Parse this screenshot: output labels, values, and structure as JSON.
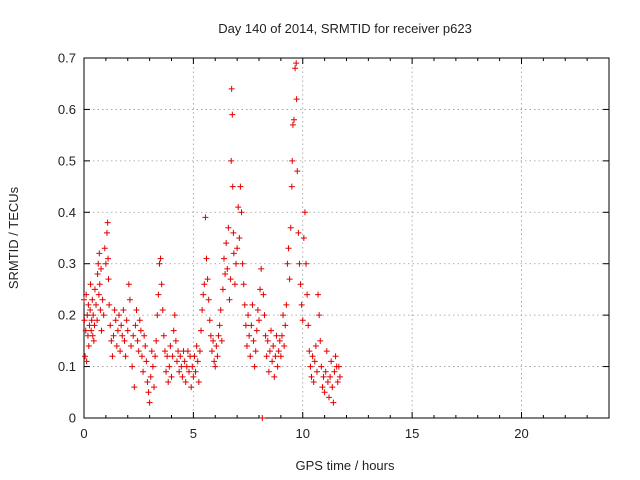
{
  "chart_data": {
    "type": "scatter",
    "title": "Day 140 of 2014, SRMTID for receiver p623",
    "xlabel": "GPS time / hours",
    "ylabel": "SRMTID / TECUs",
    "xlim": [
      0,
      24
    ],
    "ylim": [
      0,
      0.7
    ],
    "xticks": [
      0,
      5,
      10,
      15,
      20
    ],
    "yticks": [
      0,
      0.1,
      0.2,
      0.3,
      0.4,
      0.5,
      0.6,
      0.7
    ],
    "xtick_labels": [
      "0",
      "5",
      "10",
      "15",
      "20"
    ],
    "ytick_labels": [
      "0",
      "0.1",
      "0.2",
      "0.3",
      "0.4",
      "0.5",
      "0.6",
      "0.7"
    ],
    "grid": true,
    "marker": "+",
    "color": "#e00000",
    "series": [
      {
        "name": "SRMTID",
        "points": [
          [
            0.0,
            0.23
          ],
          [
            0.02,
            0.19
          ],
          [
            0.05,
            0.12
          ],
          [
            0.08,
            0.17
          ],
          [
            0.1,
            0.24
          ],
          [
            0.12,
            0.11
          ],
          [
            0.15,
            0.2
          ],
          [
            0.18,
            0.16
          ],
          [
            0.2,
            0.22
          ],
          [
            0.22,
            0.14
          ],
          [
            0.25,
            0.18
          ],
          [
            0.28,
            0.21
          ],
          [
            0.3,
            0.26
          ],
          [
            0.33,
            0.17
          ],
          [
            0.35,
            0.19
          ],
          [
            0.38,
            0.23
          ],
          [
            0.4,
            0.16
          ],
          [
            0.42,
            0.2
          ],
          [
            0.45,
            0.15
          ],
          [
            0.48,
            0.18
          ],
          [
            0.5,
            0.25
          ],
          [
            0.55,
            0.22
          ],
          [
            0.6,
            0.19
          ],
          [
            0.62,
            0.28
          ],
          [
            0.65,
            0.3
          ],
          [
            0.68,
            0.24
          ],
          [
            0.7,
            0.32
          ],
          [
            0.72,
            0.26
          ],
          [
            0.75,
            0.21
          ],
          [
            0.78,
            0.29
          ],
          [
            0.8,
            0.17
          ],
          [
            0.85,
            0.23
          ],
          [
            0.9,
            0.2
          ],
          [
            0.95,
            0.33
          ],
          [
            1.0,
            0.3
          ],
          [
            1.05,
            0.36
          ],
          [
            1.08,
            0.38
          ],
          [
            1.1,
            0.31
          ],
          [
            1.12,
            0.27
          ],
          [
            1.15,
            0.22
          ],
          [
            1.2,
            0.18
          ],
          [
            1.25,
            0.15
          ],
          [
            1.3,
            0.12
          ],
          [
            1.35,
            0.16
          ],
          [
            1.4,
            0.21
          ],
          [
            1.45,
            0.19
          ],
          [
            1.5,
            0.14
          ],
          [
            1.55,
            0.17
          ],
          [
            1.6,
            0.2
          ],
          [
            1.65,
            0.13
          ],
          [
            1.7,
            0.18
          ],
          [
            1.75,
            0.16
          ],
          [
            1.8,
            0.21
          ],
          [
            1.85,
            0.15
          ],
          [
            1.9,
            0.12
          ],
          [
            1.95,
            0.19
          ],
          [
            2.0,
            0.17
          ],
          [
            2.05,
            0.26
          ],
          [
            2.1,
            0.23
          ],
          [
            2.15,
            0.14
          ],
          [
            2.2,
            0.1
          ],
          [
            2.25,
            0.16
          ],
          [
            2.3,
            0.06
          ],
          [
            2.35,
            0.18
          ],
          [
            2.4,
            0.21
          ],
          [
            2.45,
            0.15
          ],
          [
            2.5,
            0.13
          ],
          [
            2.55,
            0.19
          ],
          [
            2.6,
            0.17
          ],
          [
            2.65,
            0.12
          ],
          [
            2.7,
            0.09
          ],
          [
            2.75,
            0.16
          ],
          [
            2.8,
            0.14
          ],
          [
            2.85,
            0.11
          ],
          [
            2.9,
            0.07
          ],
          [
            2.95,
            0.05
          ],
          [
            3.0,
            0.03
          ],
          [
            3.05,
            0.08
          ],
          [
            3.1,
            0.13
          ],
          [
            3.15,
            0.1
          ],
          [
            3.2,
            0.06
          ],
          [
            3.25,
            0.12
          ],
          [
            3.3,
            0.15
          ],
          [
            3.35,
            0.2
          ],
          [
            3.4,
            0.24
          ],
          [
            3.45,
            0.3
          ],
          [
            3.5,
            0.31
          ],
          [
            3.55,
            0.26
          ],
          [
            3.6,
            0.21
          ],
          [
            3.65,
            0.16
          ],
          [
            3.7,
            0.13
          ],
          [
            3.75,
            0.09
          ],
          [
            3.8,
            0.12
          ],
          [
            3.85,
            0.07
          ],
          [
            3.9,
            0.1
          ],
          [
            3.95,
            0.14
          ],
          [
            4.0,
            0.08
          ],
          [
            4.05,
            0.12
          ],
          [
            4.1,
            0.17
          ],
          [
            4.15,
            0.2
          ],
          [
            4.2,
            0.15
          ],
          [
            4.25,
            0.11
          ],
          [
            4.3,
            0.13
          ],
          [
            4.35,
            0.09
          ],
          [
            4.4,
            0.12
          ],
          [
            4.45,
            0.1
          ],
          [
            4.5,
            0.08
          ],
          [
            4.55,
            0.13
          ],
          [
            4.6,
            0.11
          ],
          [
            4.65,
            0.07
          ],
          [
            4.7,
            0.1
          ],
          [
            4.75,
            0.13
          ],
          [
            4.8,
            0.09
          ],
          [
            4.85,
            0.12
          ],
          [
            4.9,
            0.06
          ],
          [
            4.95,
            0.1
          ],
          [
            5.0,
            0.08
          ],
          [
            5.05,
            0.12
          ],
          [
            5.1,
            0.09
          ],
          [
            5.15,
            0.14
          ],
          [
            5.2,
            0.11
          ],
          [
            5.25,
            0.07
          ],
          [
            5.3,
            0.13
          ],
          [
            5.35,
            0.17
          ],
          [
            5.4,
            0.21
          ],
          [
            5.45,
            0.24
          ],
          [
            5.5,
            0.26
          ],
          [
            5.55,
            0.39
          ],
          [
            5.6,
            0.31
          ],
          [
            5.65,
            0.27
          ],
          [
            5.7,
            0.23
          ],
          [
            5.75,
            0.19
          ],
          [
            5.8,
            0.16
          ],
          [
            5.85,
            0.13
          ],
          [
            5.9,
            0.15
          ],
          [
            5.95,
            0.11
          ],
          [
            6.0,
            0.1
          ],
          [
            6.05,
            0.14
          ],
          [
            6.1,
            0.12
          ],
          [
            6.15,
            0.16
          ],
          [
            6.2,
            0.18
          ],
          [
            6.25,
            0.21
          ],
          [
            6.3,
            0.15
          ],
          [
            6.35,
            0.25
          ],
          [
            6.4,
            0.31
          ],
          [
            6.45,
            0.28
          ],
          [
            6.5,
            0.34
          ],
          [
            6.55,
            0.29
          ],
          [
            6.6,
            0.37
          ],
          [
            6.65,
            0.23
          ],
          [
            6.7,
            0.27
          ],
          [
            6.73,
            0.5
          ],
          [
            6.75,
            0.64
          ],
          [
            6.78,
            0.59
          ],
          [
            6.8,
            0.45
          ],
          [
            6.83,
            0.36
          ],
          [
            6.85,
            0.32
          ],
          [
            6.9,
            0.26
          ],
          [
            6.95,
            0.3
          ],
          [
            7.0,
            0.33
          ],
          [
            7.05,
            0.41
          ],
          [
            7.1,
            0.35
          ],
          [
            7.15,
            0.45
          ],
          [
            7.2,
            0.4
          ],
          [
            7.25,
            0.3
          ],
          [
            7.3,
            0.26
          ],
          [
            7.35,
            0.22
          ],
          [
            7.4,
            0.18
          ],
          [
            7.45,
            0.14
          ],
          [
            7.5,
            0.2
          ],
          [
            7.55,
            0.16
          ],
          [
            7.6,
            0.12
          ],
          [
            7.65,
            0.18
          ],
          [
            7.7,
            0.22
          ],
          [
            7.75,
            0.15
          ],
          [
            7.8,
            0.1
          ],
          [
            7.85,
            0.13
          ],
          [
            7.9,
            0.17
          ],
          [
            7.95,
            0.21
          ],
          [
            8.0,
            0.19
          ],
          [
            8.05,
            0.25
          ],
          [
            8.1,
            0.29
          ],
          [
            8.15,
            0.0
          ],
          [
            8.2,
            0.24
          ],
          [
            8.25,
            0.2
          ],
          [
            8.3,
            0.16
          ],
          [
            8.35,
            0.12
          ],
          [
            8.4,
            0.15
          ],
          [
            8.45,
            0.09
          ],
          [
            8.5,
            0.13
          ],
          [
            8.55,
            0.17
          ],
          [
            8.6,
            0.11
          ],
          [
            8.65,
            0.14
          ],
          [
            8.7,
            0.08
          ],
          [
            8.75,
            0.12
          ],
          [
            8.8,
            0.16
          ],
          [
            8.85,
            0.1
          ],
          [
            8.9,
            0.13
          ],
          [
            8.95,
            0.15
          ],
          [
            9.0,
            0.12
          ],
          [
            9.05,
            0.16
          ],
          [
            9.1,
            0.2
          ],
          [
            9.15,
            0.14
          ],
          [
            9.2,
            0.18
          ],
          [
            9.25,
            0.22
          ],
          [
            9.3,
            0.3
          ],
          [
            9.35,
            0.33
          ],
          [
            9.4,
            0.27
          ],
          [
            9.45,
            0.37
          ],
          [
            9.5,
            0.45
          ],
          [
            9.52,
            0.5
          ],
          [
            9.55,
            0.57
          ],
          [
            9.6,
            0.58
          ],
          [
            9.65,
            0.68
          ],
          [
            9.7,
            0.69
          ],
          [
            9.72,
            0.62
          ],
          [
            9.75,
            0.48
          ],
          [
            9.8,
            0.36
          ],
          [
            9.85,
            0.3
          ],
          [
            9.9,
            0.26
          ],
          [
            9.95,
            0.22
          ],
          [
            10.0,
            0.19
          ],
          [
            10.05,
            0.35
          ],
          [
            10.1,
            0.4
          ],
          [
            10.15,
            0.3
          ],
          [
            10.2,
            0.24
          ],
          [
            10.25,
            0.18
          ],
          [
            10.3,
            0.13
          ],
          [
            10.35,
            0.1
          ],
          [
            10.4,
            0.08
          ],
          [
            10.45,
            0.12
          ],
          [
            10.5,
            0.07
          ],
          [
            10.55,
            0.11
          ],
          [
            10.6,
            0.14
          ],
          [
            10.65,
            0.09
          ],
          [
            10.7,
            0.24
          ],
          [
            10.75,
            0.2
          ],
          [
            10.8,
            0.15
          ],
          [
            10.85,
            0.1
          ],
          [
            10.9,
            0.06
          ],
          [
            10.95,
            0.08
          ],
          [
            11.0,
            0.05
          ],
          [
            11.05,
            0.09
          ],
          [
            11.1,
            0.13
          ],
          [
            11.15,
            0.07
          ],
          [
            11.2,
            0.04
          ],
          [
            11.25,
            0.08
          ],
          [
            11.3,
            0.11
          ],
          [
            11.35,
            0.06
          ],
          [
            11.4,
            0.03
          ],
          [
            11.45,
            0.09
          ],
          [
            11.5,
            0.12
          ],
          [
            11.55,
            0.1
          ],
          [
            11.6,
            0.07
          ],
          [
            11.65,
            0.1
          ],
          [
            11.7,
            0.08
          ]
        ]
      }
    ]
  }
}
